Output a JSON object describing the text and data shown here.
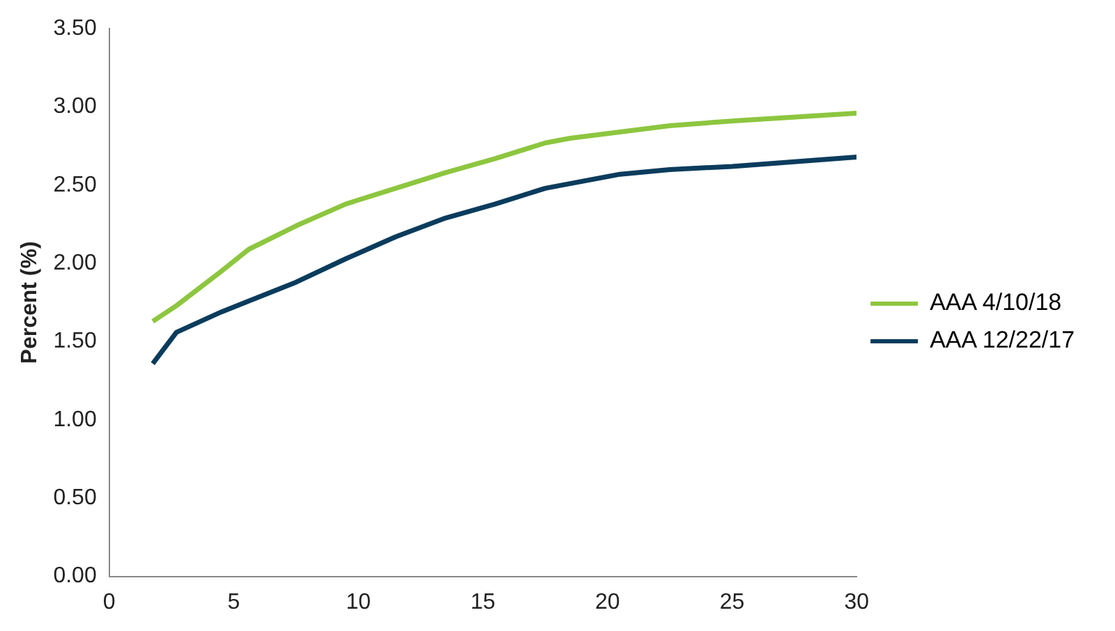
{
  "chart_data": {
    "type": "line",
    "ylabel": "Percent (%)",
    "legend": "right",
    "grid": false,
    "marker": "none",
    "line_style": "solid",
    "xlim": [
      0,
      30
    ],
    "xticks": [
      0,
      5,
      10,
      15,
      20,
      25,
      30
    ],
    "ylim": [
      0,
      3.5
    ],
    "yticks": [
      {
        "value": 0,
        "label": "0.00"
      },
      {
        "value": 0.5,
        "label": "0.50"
      },
      {
        "value": 1,
        "label": "1.00"
      },
      {
        "value": 1.5,
        "label": "1.50"
      },
      {
        "value": 2,
        "label": "2.00"
      },
      {
        "value": 2.5,
        "label": "2.50"
      },
      {
        "value": 3,
        "label": "3.00"
      },
      {
        "value": 3.5,
        "label": "3.50"
      }
    ],
    "x": [
      1.75,
      2.7,
      4.5,
      5.6,
      7.5,
      9.5,
      11.5,
      13.5,
      15.5,
      17.5,
      18.5,
      20.5,
      22.5,
      25,
      30
    ],
    "series": [
      {
        "name": "AAA 4/10/18",
        "color": "#8dc63f",
        "values": [
          1.63,
          1.73,
          1.95,
          2.09,
          2.24,
          2.38,
          2.48,
          2.58,
          2.67,
          2.77,
          2.8,
          2.84,
          2.88,
          2.91,
          2.96
        ]
      },
      {
        "name": "AAA 12/22/17",
        "color": "#0b3c5d",
        "values": [
          1.36,
          1.56,
          1.69,
          1.76,
          1.88,
          2.03,
          2.17,
          2.29,
          2.38,
          2.48,
          2.51,
          2.57,
          2.6,
          2.62,
          2.68
        ]
      }
    ]
  }
}
